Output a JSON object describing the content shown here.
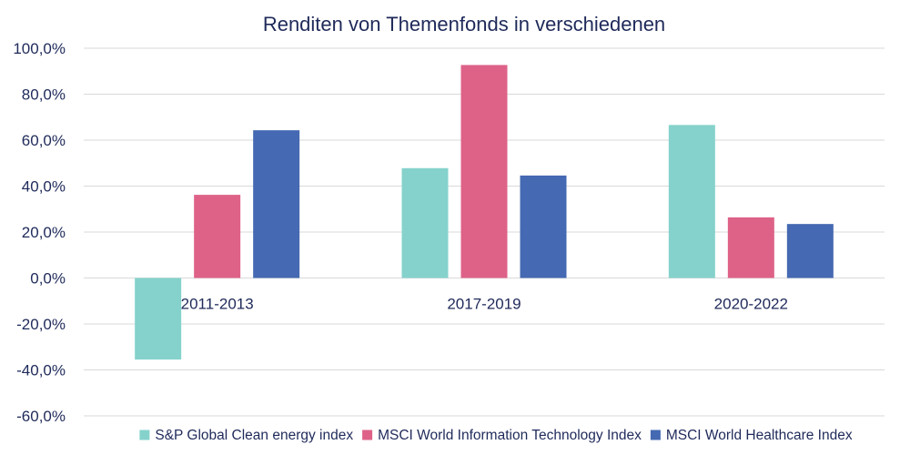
{
  "chart_data": {
    "type": "bar",
    "title": "Renditen von Themenfonds in verschiedenen",
    "categories": [
      "2011-2013",
      "2017-2019",
      "2020-2022"
    ],
    "series": [
      {
        "name": "S&P Global Clean energy index",
        "color": "#85d2cc",
        "values": [
          -35.5,
          47.8,
          66.6
        ]
      },
      {
        "name": "MSCI World Information Technology Index",
        "color": "#de6288",
        "values": [
          36.2,
          92.7,
          26.4
        ]
      },
      {
        "name": "MSCI World Healthcare Index",
        "color": "#4569b2",
        "values": [
          64.3,
          44.6,
          23.5
        ]
      }
    ],
    "ylim": [
      -60,
      100
    ],
    "yticks": [
      100,
      80,
      60,
      40,
      20,
      0,
      -20,
      -40,
      -60
    ],
    "ytick_labels": [
      "100,0%",
      "80,0%",
      "60,0%",
      "40,0%",
      "20,0%",
      "0,0%",
      "-20,0%",
      "-40,0%",
      "-60,0%"
    ],
    "grid": true,
    "legend_position": "bottom"
  }
}
